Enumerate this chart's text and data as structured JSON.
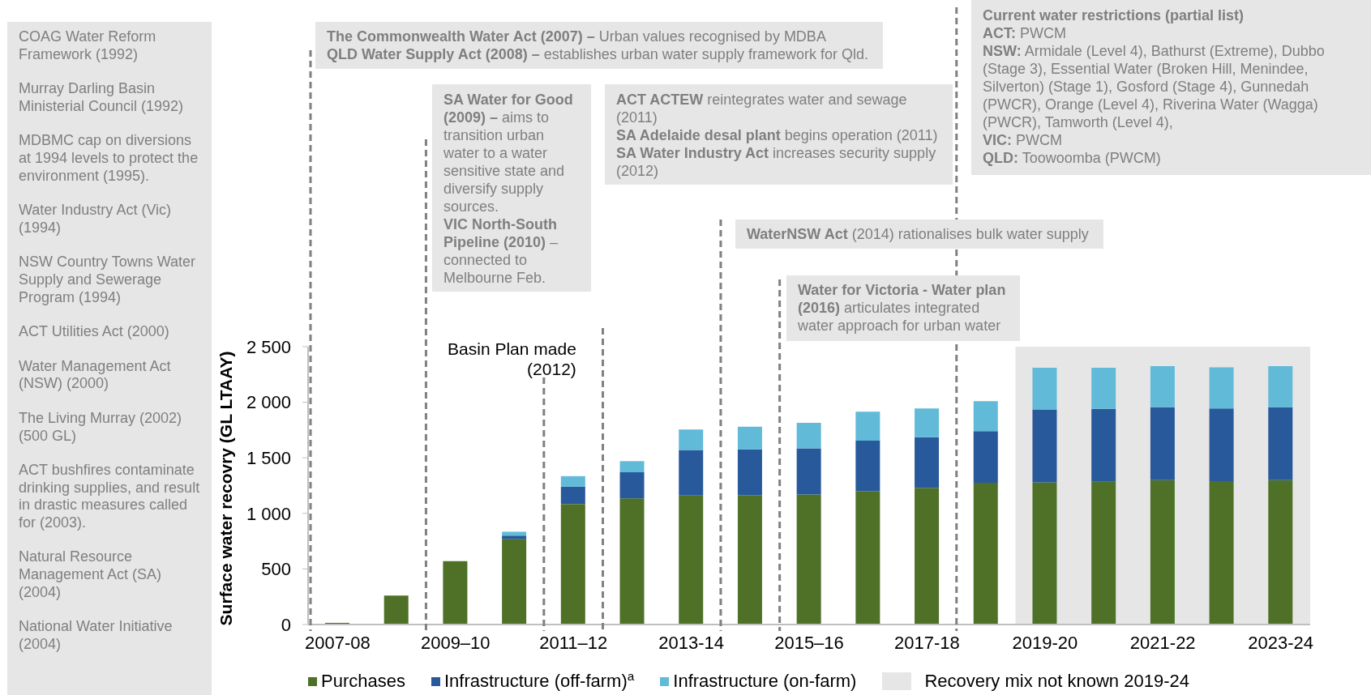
{
  "chart_data": {
    "type": "bar",
    "stacked": true,
    "ylabel": "Surface water recovry (GL LTAAY)",
    "categories": [
      "2007-08",
      null,
      "2009–10",
      null,
      "2011–12",
      null,
      "2013-14",
      null,
      "2015–16",
      null,
      "2017-18",
      null,
      "2019-20",
      null,
      "2021-22",
      null,
      "2023-24"
    ],
    "ylim": [
      0,
      2500
    ],
    "yticks": [
      0,
      500,
      {
        "value": 1000,
        "label": "1 000"
      },
      {
        "value": 1500,
        "label": "1 500"
      },
      {
        "value": 2000,
        "label": "2 000"
      },
      {
        "value": 2500,
        "label": "2 500"
      }
    ],
    "series": [
      {
        "name": "Purchases",
        "color": "#4e7127",
        "values": [
          15,
          260,
          570,
          770,
          1085,
          1135,
          1160,
          1165,
          1170,
          1200,
          1230,
          1275,
          1280,
          1285,
          1300,
          1290,
          1300
        ]
      },
      {
        "name": "Infrastructure (off-farm)$^{a}$",
        "color": "#28599b",
        "values": [
          null,
          null,
          null,
          30,
          155,
          235,
          410,
          410,
          415,
          455,
          455,
          465,
          655,
          655,
          655,
          655,
          655
        ]
      },
      {
        "name": "Infrastructure (on-farm)",
        "color": "#62bad9",
        "values": [
          null,
          null,
          null,
          35,
          95,
          100,
          185,
          205,
          230,
          260,
          260,
          270,
          375,
          370,
          370,
          370,
          370
        ]
      }
    ],
    "legend": "bottom",
    "bands": [
      {
        "axis": "x",
        "from": "2019-20",
        "to": "2023-24",
        "label": "Recovery mix not known 2019-24",
        "color": "#e6e6e6"
      }
    ],
    "annotations": [
      "COAG Water Reform Framework (1992)",
      "Murray Darling Basin Ministerial Council (1992)",
      "MDBMC cap on diversions at 1994 levels to protect the environment (1995).",
      "Water Industry Act (Vic) (1994)",
      "NSW Country Towns Water Supply and Sewerage Program (1994)",
      "ACT Utilities Act (2000)",
      "Water Management Act (NSW) (2000)",
      "The Living Murray (2002) (500 GL)",
      "ACT bushfires contaminate drinking supplies, and result in drastic measures called for (2003).",
      "Natural Resource Management Act (SA) (2004)",
      "National Water Initiative (2004)",
      "The Commonwealth Water Act (2007) –",
      "Urban values recognised by MDBA",
      "QLD Water Supply Act (2008) –",
      "establishes urban water supply framework for Qld.",
      "SA Water for Good (2009) –",
      "aims to transition urban water to a water sensitive state and diversify supply sources.",
      "VIC North-South Pipeline (2010)",
      "– connected to Melbourne Feb.",
      "ACT ACTEW",
      "reintegrates water and sewage (2011)",
      "SA Adelaide desal plant",
      "begins operation (2011)",
      "SA Water Industry Act",
      "increases security supply (2012)",
      "WaterNSW Act",
      "(2014) rationalises bulk water supply",
      "Water for Victoria - Water plan (2016)",
      "articulates integrated water approach for urban water",
      "Current water restrictions (partial list)",
      "ACT:",
      "PWCM",
      "NSW:",
      "Armidale (Level 4), Bathurst (Extreme), Dubbo (Stage 3), Essential Water (Broken Hill, Menindee, Silverton) (Stage 1), Gosford (Stage 4), Gunnedah (PWCR), Orange (Level 4), Riverina Water (Wagga) (PWCR), Tamworth (Level 4),",
      "VIC:",
      "PWCM",
      "QLD:",
      "Toowoomba (PWCM)",
      "Basin Plan made (2012)"
    ]
  }
}
